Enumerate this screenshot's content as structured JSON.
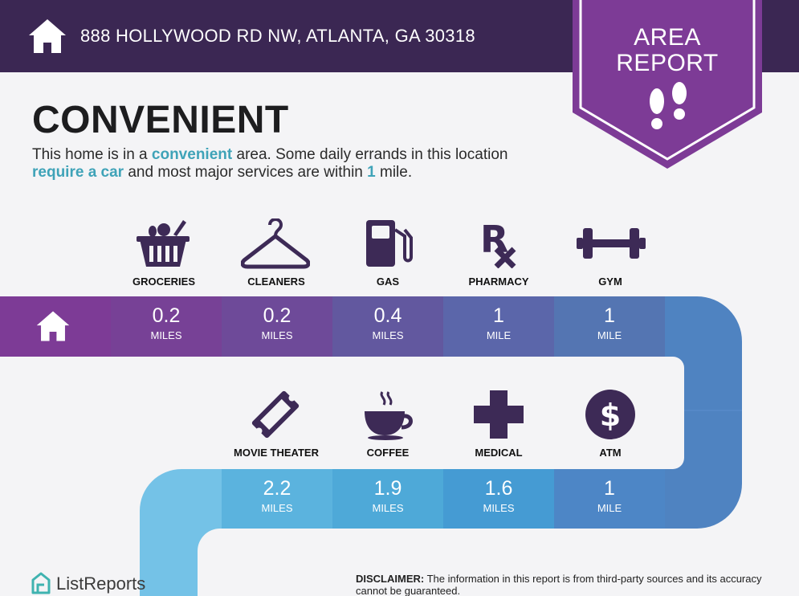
{
  "header": {
    "address": "888 HOLLYWOOD RD NW, ATLANTA, GA 30318",
    "badge_line1": "AREA",
    "badge_line2": "REPORT"
  },
  "summary": {
    "rating": "CONVENIENT",
    "desc_part1": "This home is in a ",
    "desc_highlight1": "convenient",
    "desc_part2": " area. Some daily errands in this location ",
    "desc_highlight2": "require a car",
    "desc_part3": " and most major services are within ",
    "desc_highlight3": "1",
    "desc_part4": " mile."
  },
  "row1": [
    {
      "label": "GROCERIES",
      "value": "0.2",
      "unit": "MILES",
      "icon": "grocery-basket-icon"
    },
    {
      "label": "CLEANERS",
      "value": "0.2",
      "unit": "MILES",
      "icon": "hanger-icon"
    },
    {
      "label": "GAS",
      "value": "0.4",
      "unit": "MILES",
      "icon": "gas-pump-icon"
    },
    {
      "label": "PHARMACY",
      "value": "1",
      "unit": "MILE",
      "icon": "rx-icon"
    },
    {
      "label": "GYM",
      "value": "1",
      "unit": "MILE",
      "icon": "dumbbell-icon"
    }
  ],
  "row2": [
    {
      "label": "MOVIE THEATER",
      "value": "2.2",
      "unit": "MILES",
      "icon": "ticket-icon"
    },
    {
      "label": "COFFEE",
      "value": "1.9",
      "unit": "MILES",
      "icon": "coffee-cup-icon"
    },
    {
      "label": "MEDICAL",
      "value": "1.6",
      "unit": "MILES",
      "icon": "medical-cross-icon"
    },
    {
      "label": "ATM",
      "value": "1",
      "unit": "MILE",
      "icon": "dollar-icon"
    }
  ],
  "footer": {
    "brand": "ListReports",
    "disclaimer_label": "DISCLAIMER:",
    "disclaimer_text": " The information in this report is from third-party sources and its accuracy cannot be guaranteed."
  },
  "colors": {
    "header_bg": "#3b2753",
    "badge_purple": "#7d3b96",
    "highlight_teal": "#3fa3b8",
    "icon_dark": "#3d2a56"
  }
}
